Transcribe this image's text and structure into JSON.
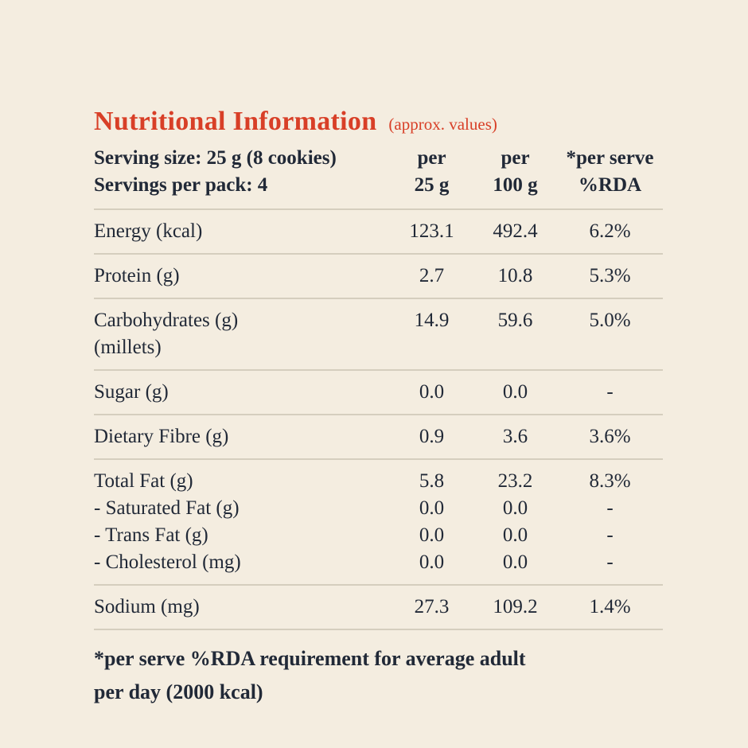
{
  "title": {
    "text": "Nutritional Information",
    "note": "(approx. values)"
  },
  "header": {
    "serving_size": "Serving size: 25 g (8 cookies)",
    "servings_per_pack": "Servings per pack: 4",
    "columns": [
      {
        "line1": "per",
        "line2": "25 g"
      },
      {
        "line1": "per",
        "line2": "100 g"
      },
      {
        "line1": "*per serve",
        "line2": "%RDA"
      }
    ]
  },
  "table": {
    "sections": [
      {
        "rows": [
          {
            "label": "Energy (kcal)",
            "per_25g": "123.1",
            "per_100g": "492.4",
            "rda_percent": "6.2%"
          }
        ]
      },
      {
        "rows": [
          {
            "label": "Protein (g)",
            "per_25g": "2.7",
            "per_100g": "10.8",
            "rda_percent": "5.3%"
          }
        ]
      },
      {
        "rows": [
          {
            "label": "Carbohydrates (g)",
            "per_25g": "14.9",
            "per_100g": "59.6",
            "rda_percent": "5.0%"
          },
          {
            "label": "(millets)",
            "per_25g": "",
            "per_100g": "",
            "rda_percent": ""
          }
        ]
      },
      {
        "rows": [
          {
            "label": "Sugar (g)",
            "per_25g": "0.0",
            "per_100g": "0.0",
            "rda_percent": "-"
          }
        ]
      },
      {
        "rows": [
          {
            "label": "Dietary Fibre (g)",
            "per_25g": "0.9",
            "per_100g": "3.6",
            "rda_percent": "3.6%"
          }
        ]
      },
      {
        "rows": [
          {
            "label": "Total Fat (g)",
            "per_25g": "5.8",
            "per_100g": "23.2",
            "rda_percent": "8.3%"
          },
          {
            "label": "- Saturated Fat (g)",
            "per_25g": "0.0",
            "per_100g": "0.0",
            "rda_percent": "-"
          },
          {
            "label": "- Trans Fat (g)",
            "per_25g": "0.0",
            "per_100g": "0.0",
            "rda_percent": "-"
          },
          {
            "label": "- Cholesterol (mg)",
            "per_25g": "0.0",
            "per_100g": "0.0",
            "rda_percent": "-"
          }
        ]
      },
      {
        "rows": [
          {
            "label": "Sodium (mg)",
            "per_25g": "27.3",
            "per_100g": "109.2",
            "rda_percent": "1.4%"
          }
        ]
      }
    ]
  },
  "footnote": {
    "line1": "*per serve %RDA requirement for average adult",
    "line2": "per day (2000 kcal)"
  },
  "colors": {
    "background": "#f4ede0",
    "text": "#212937",
    "accent": "#d83f27",
    "divider": "#d5cebe"
  }
}
